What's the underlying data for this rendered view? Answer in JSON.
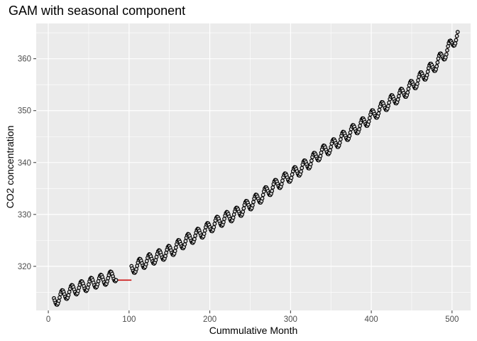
{
  "chart_data": {
    "type": "line",
    "title": "GAM with seasonal component",
    "xlabel": "Cummulative Month",
    "ylabel": "CO2 concentration",
    "xlim": [
      -15,
      523
    ],
    "ylim": [
      311.5,
      366.8
    ],
    "x_ticks": [
      0,
      100,
      200,
      300,
      400,
      500
    ],
    "x_tick_labels": [
      "0",
      "100",
      "200",
      "300",
      "400",
      "500"
    ],
    "y_ticks": [
      320,
      330,
      340,
      350,
      360
    ],
    "y_tick_labels": [
      "320",
      "330",
      "340",
      "350",
      "360"
    ],
    "grid": true,
    "background": "#ebebeb",
    "observed_segments": [
      [
        7,
        84
      ],
      [
        103,
        507
      ]
    ],
    "gap_interval": [
      84,
      103
    ],
    "series": [
      {
        "role": "observed",
        "style": "points",
        "color": "#000000",
        "fill": "#d9d9d9",
        "x": [
          7,
          20,
          33,
          46,
          59,
          72,
          84,
          103,
          116,
          129,
          142,
          155,
          168,
          181,
          194,
          207,
          220,
          233,
          246,
          259,
          272,
          285,
          298,
          311,
          324,
          337,
          350,
          363,
          376,
          389,
          402,
          415,
          428,
          441,
          454,
          467,
          480,
          493,
          507
        ],
        "y": [
          313.3,
          314.6,
          315.6,
          316.3,
          317.0,
          317.6,
          318.3,
          319.5,
          320.6,
          321.5,
          322.3,
          323.3,
          324.7,
          325.8,
          326.9,
          328.3,
          329.3,
          330.2,
          331.6,
          332.9,
          334.5,
          336.0,
          337.3,
          338.6,
          340.1,
          341.8,
          343.0,
          344.6,
          346.0,
          347.4,
          349.1,
          350.8,
          352.2,
          353.5,
          355.3,
          357.1,
          358.9,
          361.4,
          364.6
        ]
      },
      {
        "role": "fitted",
        "style": "line",
        "color": "#cc1111",
        "x": [
          7,
          20,
          33,
          46,
          59,
          72,
          84,
          103,
          116,
          129,
          142,
          155,
          168,
          181,
          194,
          207,
          220,
          233,
          246,
          259,
          272,
          285,
          298,
          311,
          324,
          337,
          350,
          363,
          376,
          389,
          402,
          415,
          428,
          441,
          454,
          467,
          480,
          493,
          507
        ],
        "y": [
          313.3,
          314.6,
          315.6,
          316.3,
          317.0,
          317.6,
          318.3,
          319.5,
          320.6,
          321.5,
          322.3,
          323.3,
          324.7,
          325.8,
          326.9,
          328.3,
          329.3,
          330.2,
          331.6,
          332.9,
          334.5,
          336.0,
          337.3,
          338.6,
          340.1,
          341.8,
          343.0,
          344.6,
          346.0,
          347.4,
          349.1,
          350.8,
          352.2,
          353.5,
          355.3,
          357.1,
          358.9,
          361.4,
          364.6
        ]
      }
    ],
    "seasonal_amplitude": 1.1
  }
}
